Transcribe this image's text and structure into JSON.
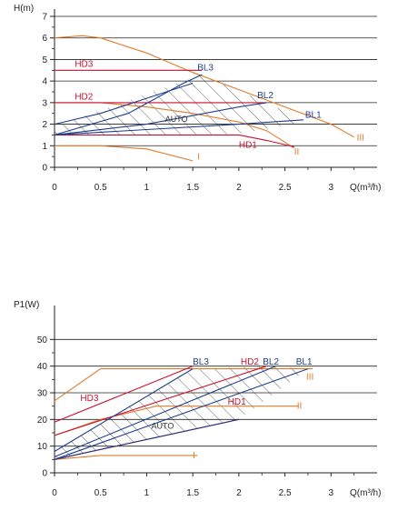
{
  "colors": {
    "blue": "#1f3d8a",
    "red": "#c8102e",
    "orange": "#e07b2a",
    "hatch": "#222222",
    "axis": "#222222"
  },
  "chart_data": [
    {
      "type": "line",
      "ylabel": "H(m)",
      "xlabel": "Q(m³/h)",
      "xlim": [
        0,
        3.5
      ],
      "ylim": [
        0,
        7
      ],
      "x_ticks": [
        "0",
        "0.5",
        "1",
        "1.5",
        "2",
        "2.5",
        "3"
      ],
      "y_ticks": [
        "0",
        "1",
        "2",
        "3",
        "4",
        "5",
        "6",
        "7"
      ],
      "grid": "horizontal",
      "series": [
        {
          "name": "I",
          "color": "orange",
          "points": [
            [
              0,
              1
            ],
            [
              0.5,
              1
            ],
            [
              1.0,
              0.85
            ],
            [
              1.5,
              0.3
            ]
          ]
        },
        {
          "name": "II",
          "color": "orange",
          "points": [
            [
              0,
              3
            ],
            [
              0.5,
              3
            ],
            [
              1.0,
              2.8
            ],
            [
              1.5,
              2.5
            ],
            [
              2.0,
              2.1
            ],
            [
              2.3,
              1.7
            ],
            [
              2.6,
              0.9
            ]
          ]
        },
        {
          "name": "III",
          "color": "orange",
          "points": [
            [
              0,
              6
            ],
            [
              0.3,
              6.1
            ],
            [
              0.5,
              6
            ],
            [
              1.0,
              5.3
            ],
            [
              1.5,
              4.4
            ],
            [
              2.0,
              3.6
            ],
            [
              2.5,
              2.8
            ],
            [
              3.0,
              2.0
            ],
            [
              3.25,
              1.4
            ]
          ]
        },
        {
          "name": "HD1",
          "color": "red",
          "points": [
            [
              0,
              1.5
            ],
            [
              2.0,
              1.5
            ],
            [
              2.3,
              1.25
            ],
            [
              2.6,
              0.95
            ]
          ]
        },
        {
          "name": "HD2",
          "color": "red",
          "points": [
            [
              0,
              3
            ],
            [
              2.3,
              3
            ]
          ]
        },
        {
          "name": "HD3",
          "color": "red",
          "points": [
            [
              0,
              4.5
            ],
            [
              1.6,
              4.5
            ]
          ]
        },
        {
          "name": "BL1",
          "color": "blue",
          "points": [
            [
              0,
              1.5
            ],
            [
              1.0,
              1.75
            ],
            [
              2.0,
              2.0
            ],
            [
              2.7,
              2.2
            ]
          ]
        },
        {
          "name": "BL2",
          "color": "blue",
          "points": [
            [
              0,
              1.5
            ],
            [
              1.0,
              2.0
            ],
            [
              2.0,
              2.8
            ],
            [
              2.3,
              3.0
            ]
          ]
        },
        {
          "name": "BL3",
          "color": "blue",
          "points": [
            [
              0,
              1.5
            ],
            [
              0.8,
              2.5
            ],
            [
              1.4,
              3.9
            ],
            [
              1.6,
              4.3
            ]
          ]
        },
        {
          "name": "AUTO",
          "color": "blue",
          "points": [
            [
              0,
              2.0
            ],
            [
              0.5,
              2.5
            ],
            [
              1.0,
              3.2
            ],
            [
              1.5,
              3.9
            ]
          ]
        }
      ],
      "annotations": [
        "HD3",
        "HD2",
        "HD1",
        "BL3",
        "BL2",
        "BL1",
        "AUTO",
        "I",
        "II",
        "III"
      ]
    },
    {
      "type": "line",
      "ylabel": "P1(W)",
      "xlabel": "Q(m³/h)",
      "xlim": [
        0,
        3.5
      ],
      "ylim": [
        0,
        60
      ],
      "x_ticks": [
        "0",
        "0.5",
        "1",
        "1.5",
        "2",
        "2.5",
        "3"
      ],
      "y_ticks": [
        "0",
        "10",
        "20",
        "30",
        "40",
        "50"
      ],
      "grid": "horizontal",
      "series": [
        {
          "name": "I",
          "color": "orange",
          "points": [
            [
              0,
              5
            ],
            [
              0.5,
              6.5
            ],
            [
              1.55,
              6.5
            ]
          ]
        },
        {
          "name": "II",
          "color": "orange",
          "points": [
            [
              0,
              14
            ],
            [
              0.5,
              20
            ],
            [
              1.1,
              25
            ],
            [
              2.65,
              25
            ]
          ]
        },
        {
          "name": "III",
          "color": "orange",
          "points": [
            [
              0,
              27
            ],
            [
              0.5,
              39
            ],
            [
              2.8,
              39
            ]
          ]
        },
        {
          "name": "HD1",
          "color": "red",
          "points": [
            [
              0,
              5
            ],
            [
              2.0,
              20
            ]
          ]
        },
        {
          "name": "HD2",
          "color": "red",
          "points": [
            [
              0,
              14
            ],
            [
              2.3,
              40
            ]
          ]
        },
        {
          "name": "HD3",
          "color": "red",
          "points": [
            [
              0,
              19
            ],
            [
              1.5,
              40
            ]
          ]
        },
        {
          "name": "BL1",
          "color": "blue",
          "points": [
            [
              0,
              5
            ],
            [
              2.75,
              39
            ]
          ]
        },
        {
          "name": "BL2",
          "color": "blue",
          "points": [
            [
              0,
              6
            ],
            [
              2.4,
              40
            ]
          ]
        },
        {
          "name": "BL3",
          "color": "blue",
          "points": [
            [
              0,
              8
            ],
            [
              1.5,
              39
            ]
          ]
        },
        {
          "name": "AUTO",
          "color": "blue",
          "points": [
            [
              0,
              5
            ],
            [
              2.0,
              20
            ]
          ]
        }
      ],
      "annotations": [
        "HD3",
        "HD2",
        "HD1",
        "BL3",
        "BL2",
        "BL1",
        "AUTO",
        "I",
        "II",
        "III"
      ]
    }
  ]
}
